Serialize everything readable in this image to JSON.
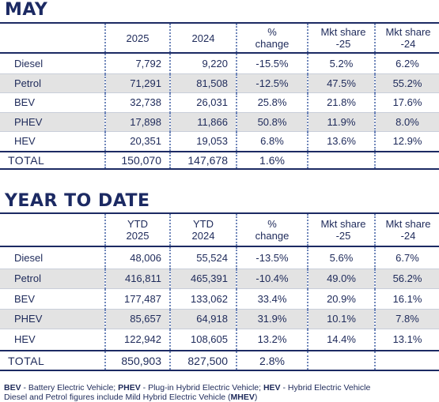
{
  "may": {
    "title": "MAY",
    "headers": [
      "",
      "2025",
      "2024",
      "% change",
      "Mkt share -25",
      "Mkt share -24"
    ],
    "rows": [
      {
        "label": "Diesel",
        "y2025": "7,792",
        "y2024": "9,220",
        "change": "-15.5%",
        "share25": "5.2%",
        "share24": "6.2%"
      },
      {
        "label": "Petrol",
        "y2025": "71,291",
        "y2024": "81,508",
        "change": "-12.5%",
        "share25": "47.5%",
        "share24": "55.2%"
      },
      {
        "label": "BEV",
        "y2025": "32,738",
        "y2024": "26,031",
        "change": "25.8%",
        "share25": "21.8%",
        "share24": "17.6%"
      },
      {
        "label": "PHEV",
        "y2025": "17,898",
        "y2024": "11,866",
        "change": "50.8%",
        "share25": "11.9%",
        "share24": "8.0%"
      },
      {
        "label": "HEV",
        "y2025": "20,351",
        "y2024": "19,053",
        "change": "6.8%",
        "share25": "13.6%",
        "share24": "12.9%"
      }
    ],
    "total": {
      "label": "TOTAL",
      "y2025": "150,070",
      "y2024": "147,678",
      "change": "1.6%"
    }
  },
  "ytd": {
    "title": "YEAR TO DATE",
    "headers": [
      "",
      "YTD 2025",
      "YTD 2024",
      "% change",
      "Mkt share -25",
      "Mkt share -24"
    ],
    "rows": [
      {
        "label": "Diesel",
        "y2025": "48,006",
        "y2024": "55,524",
        "change": "-13.5%",
        "share25": "5.6%",
        "share24": "6.7%"
      },
      {
        "label": "Petrol",
        "y2025": "416,811",
        "y2024": "465,391",
        "change": "-10.4%",
        "share25": "49.0%",
        "share24": "56.2%"
      },
      {
        "label": "BEV",
        "y2025": "177,487",
        "y2024": "133,062",
        "change": "33.4%",
        "share25": "20.9%",
        "share24": "16.1%"
      },
      {
        "label": "PHEV",
        "y2025": "85,657",
        "y2024": "64,918",
        "change": "31.9%",
        "share25": "10.1%",
        "share24": "7.8%"
      },
      {
        "label": "HEV",
        "y2025": "122,942",
        "y2024": "108,605",
        "change": "13.2%",
        "share25": "14.4%",
        "share24": "13.1%"
      }
    ],
    "total": {
      "label": "TOTAL",
      "y2025": "850,903",
      "y2024": "827,500",
      "change": "2.8%"
    }
  },
  "footnote": {
    "line1": [
      {
        "bold": "BEV",
        "text": " - Battery Electric Vehicle; "
      },
      {
        "bold": "PHEV",
        "text": " - Plug-in Hybrid Electric Vehicle; "
      },
      {
        "bold": "HEV",
        "text": " - Hybrid Electric Vehicle"
      }
    ],
    "line2_text": "Diesel and Petrol figures include Mild Hybrid Electric Vehicle (",
    "line2_bold": "MHEV",
    "line2_end": ")"
  },
  "colors": {
    "navy": "#1c2a63",
    "shade": "#e3e3e3",
    "divider": "#6f86b9"
  }
}
